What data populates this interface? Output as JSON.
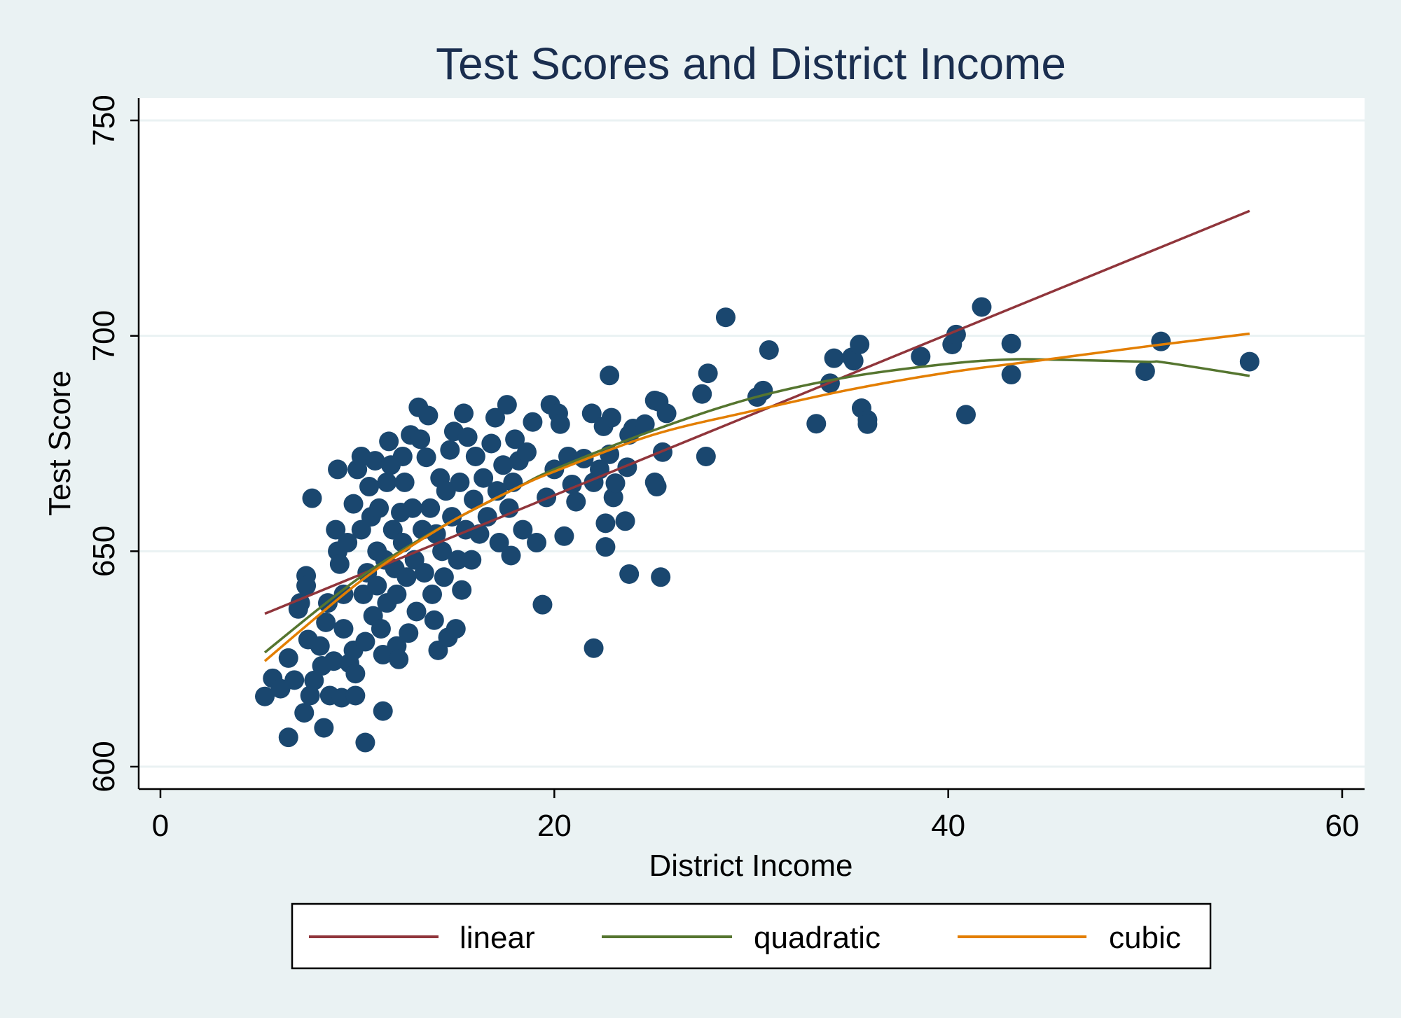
{
  "chart_data": {
    "type": "scatter",
    "title": "Test Scores and District Income",
    "xlabel": "District Income",
    "ylabel": "Test Score",
    "xlim": [
      0,
      60
    ],
    "ylim": [
      600,
      750
    ],
    "xticks": [
      "0",
      "20",
      "40",
      "60"
    ],
    "yticks": [
      "600",
      "650",
      "700",
      "750"
    ],
    "grid": "horizontal",
    "legend_position": "bottom",
    "colors": {
      "background": "#eaf2f3",
      "plot": "#ffffff",
      "points": "#1a476f",
      "linear": "#90353b",
      "quadratic": "#55752f",
      "cubic": "#e37e00",
      "grid": "#eaf2f3",
      "title": "#1a2e4f"
    },
    "points": [
      [
        5.3,
        616.3
      ],
      [
        5.7,
        620.5
      ],
      [
        6.1,
        618.1
      ],
      [
        6.5,
        606.8
      ],
      [
        6.5,
        625.2
      ],
      [
        6.8,
        620.1
      ],
      [
        7.0,
        636.6
      ],
      [
        7.1,
        638.0
      ],
      [
        7.3,
        612.5
      ],
      [
        7.4,
        644.3
      ],
      [
        7.4,
        642.0
      ],
      [
        7.5,
        629.5
      ],
      [
        7.6,
        616.5
      ],
      [
        7.7,
        662.3
      ],
      [
        7.8,
        620.0
      ],
      [
        8.1,
        628.0
      ],
      [
        8.2,
        623.4
      ],
      [
        8.3,
        609.0
      ],
      [
        8.4,
        633.5
      ],
      [
        8.5,
        638.0
      ],
      [
        8.6,
        616.5
      ],
      [
        8.8,
        624.5
      ],
      [
        8.9,
        655.0
      ],
      [
        9.0,
        669.0
      ],
      [
        9.0,
        650.0
      ],
      [
        9.1,
        647.0
      ],
      [
        9.2,
        616.0
      ],
      [
        9.3,
        640.0
      ],
      [
        9.3,
        632.0
      ],
      [
        9.5,
        652.0
      ],
      [
        9.6,
        624.0
      ],
      [
        9.8,
        661.0
      ],
      [
        9.8,
        627.0
      ],
      [
        9.9,
        621.6
      ],
      [
        9.9,
        616.5
      ],
      [
        10.0,
        669.0
      ],
      [
        10.2,
        672.0
      ],
      [
        10.2,
        655.0
      ],
      [
        10.3,
        640.0
      ],
      [
        10.4,
        629.0
      ],
      [
        10.4,
        605.6
      ],
      [
        10.5,
        645.0
      ],
      [
        10.6,
        665.0
      ],
      [
        10.7,
        658.0
      ],
      [
        10.8,
        635.0
      ],
      [
        10.9,
        671.0
      ],
      [
        11.0,
        650.0
      ],
      [
        11.0,
        642.0
      ],
      [
        11.1,
        660.0
      ],
      [
        11.2,
        632.0
      ],
      [
        11.3,
        626.0
      ],
      [
        11.3,
        612.9
      ],
      [
        11.4,
        648.0
      ],
      [
        11.5,
        666.0
      ],
      [
        11.5,
        638.0
      ],
      [
        11.6,
        675.5
      ],
      [
        11.7,
        670.0
      ],
      [
        11.8,
        655.0
      ],
      [
        11.9,
        646.0
      ],
      [
        12.0,
        640.0
      ],
      [
        12.0,
        628.0
      ],
      [
        12.1,
        624.9
      ],
      [
        12.2,
        659.0
      ],
      [
        12.3,
        672.0
      ],
      [
        12.3,
        652.0
      ],
      [
        12.4,
        666.0
      ],
      [
        12.5,
        644.0
      ],
      [
        12.6,
        631.0
      ],
      [
        12.7,
        677.0
      ],
      [
        12.8,
        660.0
      ],
      [
        12.9,
        648.0
      ],
      [
        13.0,
        636.0
      ],
      [
        13.1,
        683.4
      ],
      [
        13.2,
        676.0
      ],
      [
        13.3,
        655.0
      ],
      [
        13.4,
        645.0
      ],
      [
        13.5,
        671.8
      ],
      [
        13.6,
        681.5
      ],
      [
        13.7,
        660.0
      ],
      [
        13.8,
        640.0
      ],
      [
        13.9,
        634.0
      ],
      [
        14.0,
        654.0
      ],
      [
        14.1,
        627.0
      ],
      [
        14.2,
        667.0
      ],
      [
        14.3,
        650.0
      ],
      [
        14.4,
        644.0
      ],
      [
        14.5,
        664.0
      ],
      [
        14.6,
        630.0
      ],
      [
        14.7,
        673.5
      ],
      [
        14.8,
        658.0
      ],
      [
        14.9,
        677.8
      ],
      [
        15.0,
        632.0
      ],
      [
        15.1,
        648.0
      ],
      [
        15.2,
        666.0
      ],
      [
        15.3,
        641.0
      ],
      [
        15.4,
        682.0
      ],
      [
        15.5,
        655.0
      ],
      [
        15.6,
        676.5
      ],
      [
        15.8,
        648.0
      ],
      [
        15.9,
        662.0
      ],
      [
        16.0,
        672.0
      ],
      [
        16.2,
        654.0
      ],
      [
        16.4,
        667.0
      ],
      [
        16.6,
        658.0
      ],
      [
        16.8,
        675.0
      ],
      [
        17.0,
        681.0
      ],
      [
        17.1,
        664.0
      ],
      [
        17.2,
        652.0
      ],
      [
        17.4,
        670.0
      ],
      [
        17.6,
        684.0
      ],
      [
        17.7,
        660.0
      ],
      [
        17.8,
        649.0
      ],
      [
        17.9,
        666.0
      ],
      [
        18.0,
        676.0
      ],
      [
        18.2,
        671.0
      ],
      [
        18.4,
        655.0
      ],
      [
        18.6,
        673.0
      ],
      [
        18.9,
        680.0
      ],
      [
        19.1,
        652.0
      ],
      [
        19.4,
        637.6
      ],
      [
        19.6,
        662.5
      ],
      [
        19.8,
        684.0
      ],
      [
        20.0,
        669.0
      ],
      [
        20.2,
        682.0
      ],
      [
        20.3,
        679.5
      ],
      [
        20.5,
        653.5
      ],
      [
        20.7,
        672.0
      ],
      [
        20.9,
        665.5
      ],
      [
        21.1,
        661.5
      ],
      [
        21.5,
        671.5
      ],
      [
        21.9,
        682.0
      ],
      [
        22.0,
        666.0
      ],
      [
        22.0,
        627.5
      ],
      [
        22.3,
        669.0
      ],
      [
        22.5,
        679.0
      ],
      [
        22.6,
        656.5
      ],
      [
        22.6,
        651.0
      ],
      [
        22.8,
        672.5
      ],
      [
        22.8,
        690.8
      ],
      [
        22.9,
        681.0
      ],
      [
        23.0,
        662.5
      ],
      [
        23.1,
        665.8
      ],
      [
        23.6,
        657.0
      ],
      [
        23.7,
        669.5
      ],
      [
        23.8,
        677.0
      ],
      [
        23.8,
        644.7
      ],
      [
        24.0,
        678.5
      ],
      [
        24.6,
        679.5
      ],
      [
        25.1,
        685.0
      ],
      [
        25.1,
        666.0
      ],
      [
        25.2,
        665.0
      ],
      [
        25.3,
        684.7
      ],
      [
        25.4,
        644.0
      ],
      [
        25.5,
        673.0
      ],
      [
        25.7,
        682.0
      ],
      [
        27.5,
        686.5
      ],
      [
        27.7,
        672.0
      ],
      [
        27.8,
        691.3
      ],
      [
        28.7,
        704.3
      ],
      [
        30.3,
        685.8
      ],
      [
        30.6,
        687.3
      ],
      [
        30.9,
        696.7
      ],
      [
        33.3,
        679.6
      ],
      [
        34.0,
        689.0
      ],
      [
        34.2,
        694.8
      ],
      [
        35.1,
        695.0
      ],
      [
        35.2,
        694.2
      ],
      [
        35.5,
        698.0
      ],
      [
        35.6,
        683.2
      ],
      [
        35.9,
        680.5
      ],
      [
        35.9,
        679.5
      ],
      [
        38.6,
        695.2
      ],
      [
        40.2,
        698.0
      ],
      [
        40.4,
        700.3
      ],
      [
        40.9,
        681.7
      ],
      [
        41.7,
        706.7
      ],
      [
        43.2,
        698.2
      ],
      [
        43.2,
        691.0
      ],
      [
        50.0,
        691.8
      ],
      [
        50.8,
        698.7
      ],
      [
        55.3,
        694.0
      ]
    ],
    "series": [
      {
        "name": "linear",
        "x": [
          5.3,
          55.3
        ],
        "y": [
          635.5,
          729.0
        ]
      },
      {
        "name": "quadratic",
        "x": [
          5.3,
          8,
          10,
          12,
          15,
          18,
          20,
          25,
          30,
          35,
          40,
          43,
          45,
          50,
          51,
          55.3
        ],
        "y": [
          626.5,
          636.5,
          643.5,
          649.5,
          657.5,
          664.5,
          669.0,
          678.0,
          685.5,
          690.5,
          693.5,
          694.5,
          694.5,
          694.0,
          693.8,
          690.7
        ]
      },
      {
        "name": "cubic",
        "x": [
          5.3,
          8,
          10,
          12,
          15,
          18,
          20,
          25,
          30,
          35,
          40,
          45,
          50,
          55.3
        ],
        "y": [
          624.5,
          635.0,
          642.5,
          649.0,
          657.5,
          664.5,
          668.5,
          677.0,
          682.5,
          687.5,
          691.5,
          694.5,
          697.5,
          700.5
        ]
      }
    ]
  }
}
